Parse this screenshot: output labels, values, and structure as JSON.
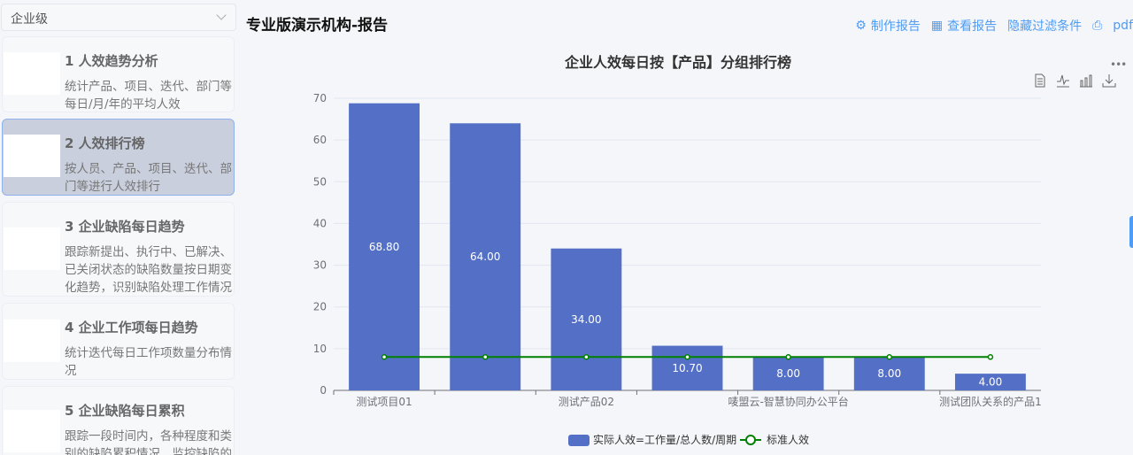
{
  "sidebar": {
    "level_select": "企业级",
    "cards": [
      {
        "title": "1 人效趋势分析",
        "desc": "统计产品、项目、迭代、部门等每日/月/年的平均人效"
      },
      {
        "title": "2 人效排行榜",
        "desc": "按人员、产品、项目、迭代、部门等进行人效排行"
      },
      {
        "title": "3 企业缺陷每日趋势",
        "desc": "跟踪新提出、执行中、已解决、已关闭状态的缺陷数量按日期变化趋势，识别缺陷处理工作情况"
      },
      {
        "title": "4 企业工作项每日趋势",
        "desc": "统计迭代每日工作项数量分布情况"
      },
      {
        "title": "5 企业缺陷每日累积",
        "desc": "跟踪一段时间内，各种程度和类别的缺陷累积情况，监控缺陷的"
      }
    ]
  },
  "header": {
    "title": "专业版演示机构-报告",
    "make_report": "制作报告",
    "view_report": "查看报告",
    "hide_filter": "隐藏过滤条件",
    "pdf": "pdf"
  },
  "colors": {
    "bar": "#5470c6",
    "line": "#008000",
    "accent": "#4d9cf5"
  },
  "chart_data": {
    "type": "bar",
    "title": "企业人效每日按【产品】分组排行榜",
    "categories": [
      "测试项目01",
      "",
      "测试产品02",
      "",
      "唛盟云-智慧协同办公平台",
      "",
      "测试团队关系的产品1"
    ],
    "series": [
      {
        "name": "实际人效=工作量/总人数/周期",
        "type": "bar",
        "values": [
          68.8,
          64.0,
          34.0,
          10.7,
          8.0,
          8.0,
          4.0
        ],
        "labels": [
          "68.80",
          "64.00",
          "34.00",
          "10.70",
          "8.00",
          "8.00",
          "4.00"
        ]
      },
      {
        "name": "标准人效",
        "type": "line",
        "values": [
          8,
          8,
          8,
          8,
          8,
          8,
          8
        ]
      }
    ],
    "yticks": [
      "0",
      "10",
      "20",
      "30",
      "40",
      "50",
      "60",
      "70"
    ],
    "ylim": [
      0,
      70
    ],
    "grid": true,
    "legend": "bottom"
  }
}
